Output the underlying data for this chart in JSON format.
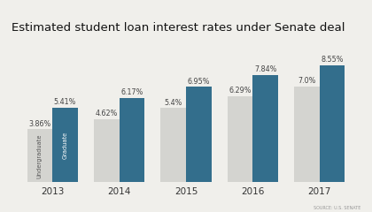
{
  "title": "Estimated student loan interest rates under Senate deal",
  "years": [
    "2013",
    "2014",
    "2015",
    "2016",
    "2017"
  ],
  "undergraduate": [
    3.86,
    4.62,
    5.4,
    6.29,
    7.0
  ],
  "graduate": [
    5.41,
    6.17,
    6.95,
    7.84,
    8.55
  ],
  "undergrad_color": "#d4d4d0",
  "grad_color": "#336e8c",
  "undergrad_label": "Undergraduate",
  "grad_label": "Graduate",
  "title_fontsize": 9.5,
  "source_text": "SOURCE: U.S. SENATE",
  "ylim": [
    0,
    10.5
  ],
  "bar_width": 0.38,
  "background_color": "#f0efeb",
  "label_fontsize": 5.8,
  "inner_label_fontsize": 4.8,
  "year_fontsize": 7.5
}
